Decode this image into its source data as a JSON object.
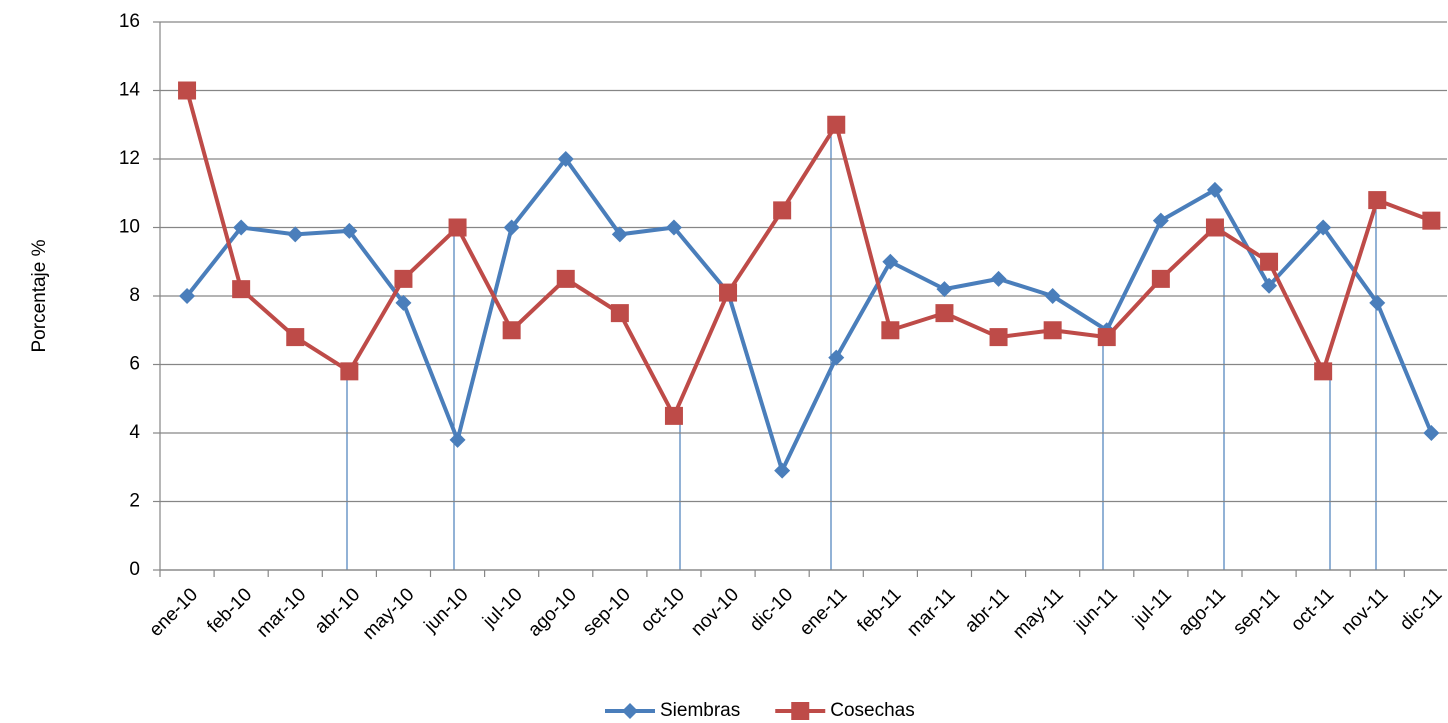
{
  "chart_data": {
    "type": "line",
    "y_label": "Porcentaje %",
    "categories": [
      "ene-10",
      "feb-10",
      "mar-10",
      "abr-10",
      "may-10",
      "jun-10",
      "jul-10",
      "ago-10",
      "sep-10",
      "oct-10",
      "nov-10",
      "dic-10",
      "ene-11",
      "feb-11",
      "mar-11",
      "abr-11",
      "may-11",
      "jun-11",
      "jul-11",
      "ago-11",
      "sep-11",
      "oct-11",
      "nov-11",
      "dic-11"
    ],
    "series": [
      {
        "name": "Siembras",
        "color": "#4a7ebb",
        "marker": "diamond",
        "values": [
          8,
          10,
          9.8,
          9.9,
          7.8,
          3.8,
          10,
          12,
          9.8,
          10,
          8.1,
          2.9,
          6.2,
          9,
          8.2,
          8.5,
          8,
          7,
          10.2,
          11.1,
          8.3,
          10,
          7.8,
          4
        ]
      },
      {
        "name": "Cosechas",
        "color": "#be4b48",
        "marker": "square",
        "values": [
          14,
          8.2,
          6.8,
          5.8,
          8.5,
          10,
          7,
          8.5,
          7.5,
          4.5,
          8.1,
          10.5,
          13,
          7,
          7.5,
          6.8,
          7,
          6.8,
          8.5,
          10,
          9,
          5.8,
          10.8,
          10.2
        ]
      }
    ],
    "ylim": [
      0,
      16
    ],
    "yticks": [
      0,
      2,
      4,
      6,
      8,
      10,
      12,
      14,
      16
    ],
    "grid": true,
    "legend": "bottom"
  }
}
